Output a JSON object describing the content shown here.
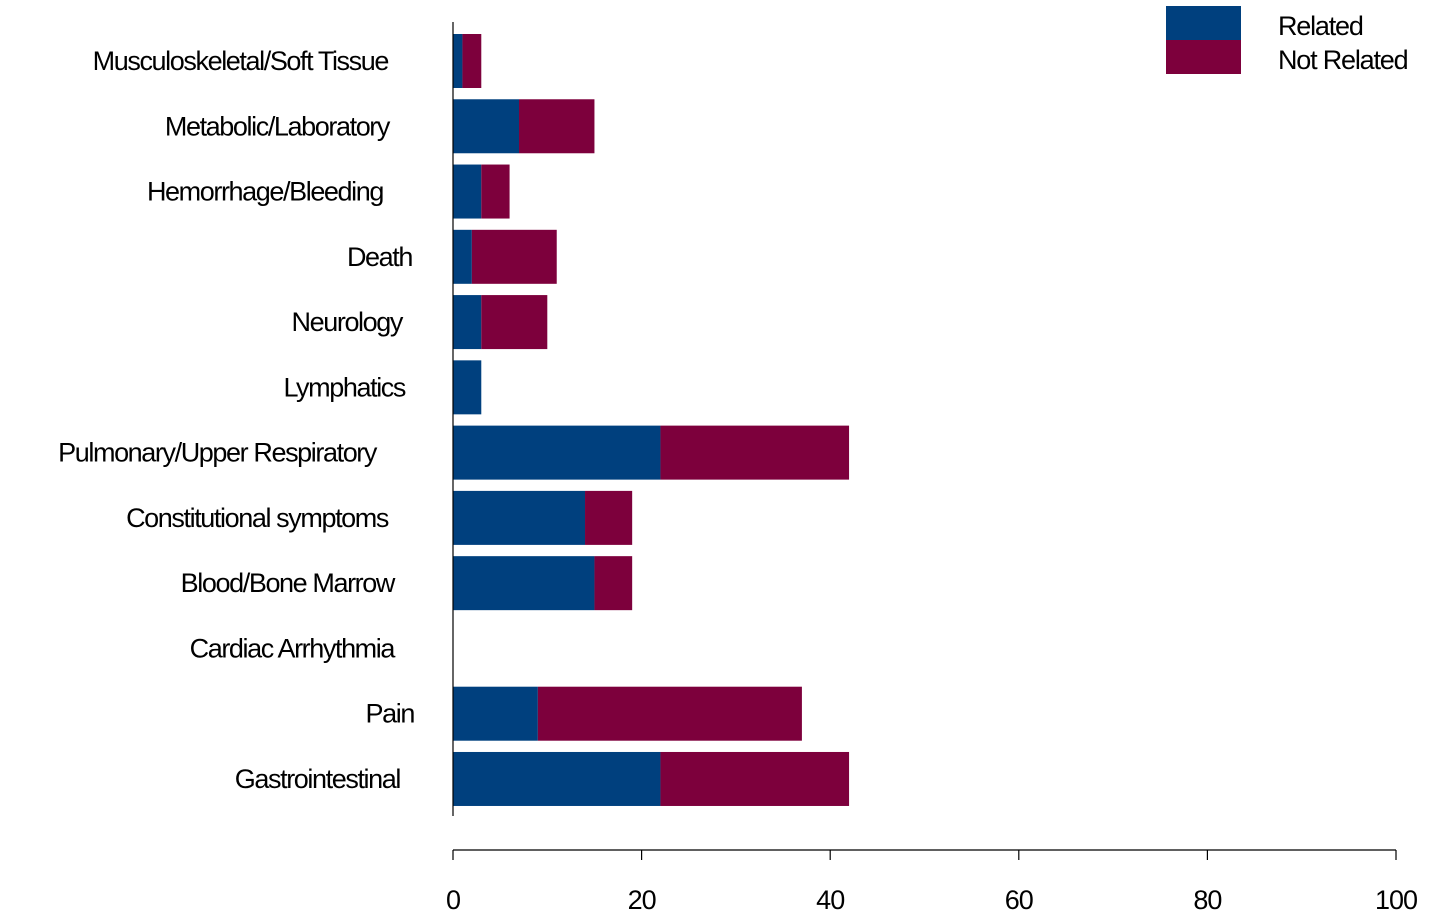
{
  "chart_data": {
    "type": "bar",
    "orientation": "horizontal",
    "stacked": true,
    "categories": [
      "Musculoskeletal/Soft Tissue",
      "Metabolic/Laboratory",
      "Hemorrhage/Bleeding",
      "Death",
      "Neurology",
      "Lymphatics",
      "Pulmonary/Upper Respiratory",
      "Constitutional symptoms",
      "Blood/Bone Marrow",
      "Cardiac Arrhythmia",
      "Pain",
      "Gastrointestinal"
    ],
    "series": [
      {
        "name": "Related",
        "color": "#00407E",
        "values": [
          1,
          7,
          3,
          2,
          3,
          3,
          22,
          14,
          15,
          0,
          9,
          22
        ]
      },
      {
        "name": "Not Related",
        "color": "#7D003C",
        "values": [
          2,
          8,
          3,
          9,
          7,
          0,
          20,
          5,
          4,
          0,
          28,
          20
        ]
      }
    ],
    "xlim": [
      0,
      100
    ],
    "xticks": [
      0,
      20,
      40,
      60,
      80,
      100
    ],
    "title": "",
    "xlabel": "",
    "ylabel": "",
    "grid": false,
    "legend": "top-right"
  }
}
